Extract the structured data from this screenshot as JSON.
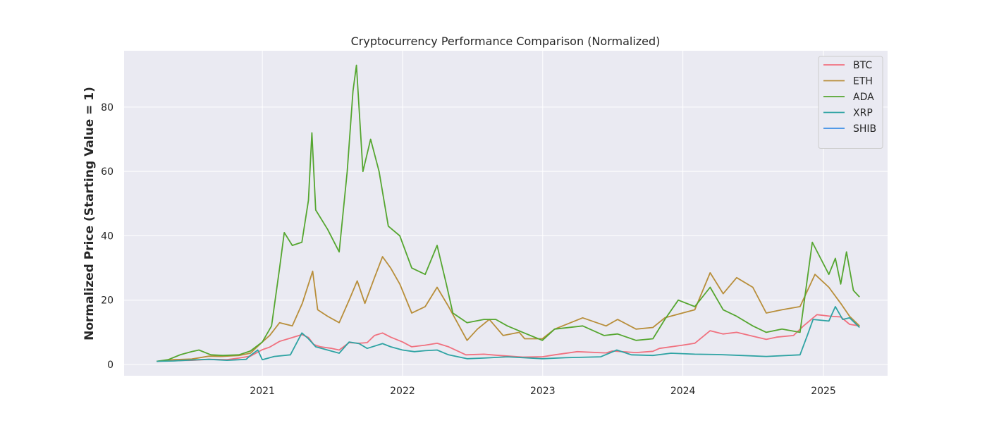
{
  "chart_data": {
    "type": "line",
    "title": "Cryptocurrency Performance Comparison (Normalized)",
    "xlabel": "",
    "ylabel": "Normalized Price (Starting Value = 1)",
    "x_ticks": [
      "2021",
      "2022",
      "2023",
      "2024",
      "2025"
    ],
    "y_ticks": [
      0,
      20,
      40,
      60,
      80
    ],
    "xlim": [
      "2020-01-07",
      "2025-06-17"
    ],
    "ylim": [
      -3.5,
      97.5
    ],
    "grid": true,
    "legend_position": "top-right",
    "series": [
      {
        "name": "BTC",
        "color": "#f0717f",
        "points": [
          [
            "2020-04-01",
            1
          ],
          [
            "2020-05-15",
            1.2
          ],
          [
            "2020-07-01",
            1.3
          ],
          [
            "2020-08-15",
            1.6
          ],
          [
            "2020-10-01",
            1.5
          ],
          [
            "2020-11-01",
            2
          ],
          [
            "2020-12-01",
            2.6
          ],
          [
            "2021-01-01",
            4.6
          ],
          [
            "2021-01-20",
            5.4
          ],
          [
            "2021-02-15",
            7.2
          ],
          [
            "2021-03-15",
            8.2
          ],
          [
            "2021-04-14",
            9.3
          ],
          [
            "2021-05-01",
            8.4
          ],
          [
            "2021-05-15",
            6.2
          ],
          [
            "2021-06-01",
            5.5
          ],
          [
            "2021-07-01",
            5.0
          ],
          [
            "2021-07-20",
            4.5
          ],
          [
            "2021-08-15",
            6.8
          ],
          [
            "2021-09-10",
            6.6
          ],
          [
            "2021-10-01",
            6.8
          ],
          [
            "2021-10-20",
            9.0
          ],
          [
            "2021-11-10",
            9.8
          ],
          [
            "2021-12-01",
            8.5
          ],
          [
            "2022-01-01",
            7.0
          ],
          [
            "2022-01-25",
            5.5
          ],
          [
            "2022-03-01",
            6.0
          ],
          [
            "2022-04-01",
            6.6
          ],
          [
            "2022-05-01",
            5.5
          ],
          [
            "2022-06-15",
            3.0
          ],
          [
            "2022-08-01",
            3.2
          ],
          [
            "2022-09-01",
            2.9
          ],
          [
            "2022-11-10",
            2.3
          ],
          [
            "2022-12-31",
            2.4
          ],
          [
            "2023-02-01",
            3.0
          ],
          [
            "2023-04-01",
            4.0
          ],
          [
            "2023-06-15",
            3.6
          ],
          [
            "2023-07-01",
            4.2
          ],
          [
            "2023-09-01",
            3.7
          ],
          [
            "2023-10-15",
            4.1
          ],
          [
            "2023-11-01",
            5.0
          ],
          [
            "2023-12-31",
            6.0
          ],
          [
            "2024-02-01",
            6.6
          ],
          [
            "2024-03-12",
            10.5
          ],
          [
            "2024-04-15",
            9.5
          ],
          [
            "2024-05-20",
            10.0
          ],
          [
            "2024-07-01",
            8.8
          ],
          [
            "2024-08-05",
            7.8
          ],
          [
            "2024-09-01",
            8.5
          ],
          [
            "2024-10-15",
            9.0
          ],
          [
            "2024-11-10",
            12.0
          ],
          [
            "2024-12-15",
            15.5
          ],
          [
            "2025-01-20",
            15.0
          ],
          [
            "2025-02-15",
            14.8
          ],
          [
            "2025-03-10",
            12.5
          ],
          [
            "2025-04-05",
            12.0
          ]
        ]
      },
      {
        "name": "ETH",
        "color": "#b88e3a",
        "points": [
          [
            "2020-04-01",
            1
          ],
          [
            "2020-05-15",
            1.5
          ],
          [
            "2020-07-01",
            1.7
          ],
          [
            "2020-08-15",
            2.6
          ],
          [
            "2020-09-15",
            2.5
          ],
          [
            "2020-11-01",
            2.8
          ],
          [
            "2020-12-01",
            3.5
          ],
          [
            "2021-01-01",
            7.0
          ],
          [
            "2021-01-20",
            9.0
          ],
          [
            "2021-02-15",
            13.0
          ],
          [
            "2021-03-20",
            12.0
          ],
          [
            "2021-04-15",
            19.0
          ],
          [
            "2021-05-12",
            29.0
          ],
          [
            "2021-05-25",
            17.0
          ],
          [
            "2021-06-20",
            15.0
          ],
          [
            "2021-07-20",
            13.0
          ],
          [
            "2021-08-15",
            20.0
          ],
          [
            "2021-09-05",
            26.0
          ],
          [
            "2021-09-25",
            19.0
          ],
          [
            "2021-10-20",
            27.0
          ],
          [
            "2021-11-10",
            33.5
          ],
          [
            "2021-12-01",
            30.0
          ],
          [
            "2021-12-25",
            25.0
          ],
          [
            "2022-01-25",
            16.0
          ],
          [
            "2022-03-01",
            18.0
          ],
          [
            "2022-04-01",
            24.0
          ],
          [
            "2022-05-01",
            18.0
          ],
          [
            "2022-06-18",
            7.5
          ],
          [
            "2022-07-15",
            11.0
          ],
          [
            "2022-08-15",
            14.0
          ],
          [
            "2022-09-20",
            9.0
          ],
          [
            "2022-11-01",
            10.0
          ],
          [
            "2022-11-15",
            8.0
          ],
          [
            "2022-12-31",
            8.0
          ],
          [
            "2023-02-01",
            11.0
          ],
          [
            "2023-04-15",
            14.5
          ],
          [
            "2023-06-15",
            12.0
          ],
          [
            "2023-07-15",
            14.0
          ],
          [
            "2023-09-01",
            11.0
          ],
          [
            "2023-10-15",
            11.5
          ],
          [
            "2023-11-15",
            14.5
          ],
          [
            "2023-12-31",
            16.0
          ],
          [
            "2024-02-01",
            17.0
          ],
          [
            "2024-03-12",
            28.5
          ],
          [
            "2024-04-15",
            22.0
          ],
          [
            "2024-05-20",
            27.0
          ],
          [
            "2024-07-01",
            24.0
          ],
          [
            "2024-08-05",
            16.0
          ],
          [
            "2024-09-15",
            17.0
          ],
          [
            "2024-11-01",
            18.0
          ],
          [
            "2024-12-10",
            28.0
          ],
          [
            "2025-01-15",
            24.0
          ],
          [
            "2025-02-15",
            19.0
          ],
          [
            "2025-03-10",
            15.0
          ],
          [
            "2025-04-05",
            12.0
          ]
        ]
      },
      {
        "name": "ADA",
        "color": "#55a630",
        "points": [
          [
            "2020-04-01",
            1
          ],
          [
            "2020-05-01",
            1.5
          ],
          [
            "2020-06-01",
            3.0
          ],
          [
            "2020-07-01",
            4.0
          ],
          [
            "2020-07-20",
            4.5
          ],
          [
            "2020-08-20",
            3.0
          ],
          [
            "2020-09-20",
            2.8
          ],
          [
            "2020-11-01",
            3.0
          ],
          [
            "2020-12-01",
            4.2
          ],
          [
            "2021-01-01",
            7.0
          ],
          [
            "2021-01-25",
            12.0
          ],
          [
            "2021-02-15",
            30.0
          ],
          [
            "2021-02-27",
            41.0
          ],
          [
            "2021-03-20",
            37.0
          ],
          [
            "2021-04-14",
            38.0
          ],
          [
            "2021-05-01",
            51.0
          ],
          [
            "2021-05-10",
            72.0
          ],
          [
            "2021-05-20",
            48.0
          ],
          [
            "2021-06-20",
            42.0
          ],
          [
            "2021-07-20",
            35.0
          ],
          [
            "2021-08-10",
            60.0
          ],
          [
            "2021-08-25",
            85.0
          ],
          [
            "2021-09-03",
            93.0
          ],
          [
            "2021-09-20",
            60.0
          ],
          [
            "2021-10-10",
            70.0
          ],
          [
            "2021-11-01",
            60.0
          ],
          [
            "2021-11-25",
            43.0
          ],
          [
            "2021-12-25",
            40.0
          ],
          [
            "2022-01-25",
            30.0
          ],
          [
            "2022-03-01",
            28.0
          ],
          [
            "2022-04-01",
            37.0
          ],
          [
            "2022-04-25",
            25.0
          ],
          [
            "2022-05-12",
            16.0
          ],
          [
            "2022-06-18",
            13.0
          ],
          [
            "2022-08-01",
            14.0
          ],
          [
            "2022-09-01",
            14.0
          ],
          [
            "2022-10-01",
            12.0
          ],
          [
            "2022-11-10",
            10.0
          ],
          [
            "2022-12-31",
            7.5
          ],
          [
            "2023-02-01",
            11.0
          ],
          [
            "2023-04-15",
            12.0
          ],
          [
            "2023-06-10",
            9.0
          ],
          [
            "2023-07-15",
            9.5
          ],
          [
            "2023-09-01",
            7.5
          ],
          [
            "2023-10-15",
            8.0
          ],
          [
            "2023-11-15",
            14.0
          ],
          [
            "2023-12-20",
            20.0
          ],
          [
            "2024-02-01",
            18.0
          ],
          [
            "2024-03-12",
            24.0
          ],
          [
            "2024-04-15",
            17.0
          ],
          [
            "2024-05-20",
            15.0
          ],
          [
            "2024-07-01",
            12.0
          ],
          [
            "2024-08-05",
            10.0
          ],
          [
            "2024-09-15",
            11.0
          ],
          [
            "2024-11-01",
            10.0
          ],
          [
            "2024-12-03",
            38.0
          ],
          [
            "2025-01-15",
            28.0
          ],
          [
            "2025-02-01",
            33.0
          ],
          [
            "2025-02-15",
            25.0
          ],
          [
            "2025-03-02",
            35.0
          ],
          [
            "2025-03-20",
            23.0
          ],
          [
            "2025-04-05",
            21.0
          ]
        ]
      },
      {
        "name": "XRP",
        "color": "#2ea3a3",
        "points": [
          [
            "2020-04-01",
            1
          ],
          [
            "2020-05-15",
            1.1
          ],
          [
            "2020-07-01",
            1.4
          ],
          [
            "2020-08-15",
            1.6
          ],
          [
            "2020-10-01",
            1.3
          ],
          [
            "2020-11-20",
            1.6
          ],
          [
            "2020-12-01",
            2.8
          ],
          [
            "2020-12-20",
            4.5
          ],
          [
            "2021-01-01",
            1.5
          ],
          [
            "2021-02-01",
            2.5
          ],
          [
            "2021-03-15",
            3.0
          ],
          [
            "2021-04-14",
            9.8
          ],
          [
            "2021-05-01",
            8.0
          ],
          [
            "2021-05-20",
            5.5
          ],
          [
            "2021-06-20",
            4.5
          ],
          [
            "2021-07-20",
            3.5
          ],
          [
            "2021-08-15",
            7.0
          ],
          [
            "2021-09-10",
            6.5
          ],
          [
            "2021-10-01",
            5.0
          ],
          [
            "2021-11-10",
            6.5
          ],
          [
            "2021-12-01",
            5.5
          ],
          [
            "2022-01-01",
            4.5
          ],
          [
            "2022-02-01",
            4.0
          ],
          [
            "2022-03-01",
            4.3
          ],
          [
            "2022-04-01",
            4.5
          ],
          [
            "2022-05-01",
            3.0
          ],
          [
            "2022-06-18",
            1.8
          ],
          [
            "2022-08-01",
            2.0
          ],
          [
            "2022-10-01",
            2.4
          ],
          [
            "2022-12-31",
            1.8
          ],
          [
            "2023-03-01",
            2.1
          ],
          [
            "2023-06-01",
            2.4
          ],
          [
            "2023-07-13",
            4.5
          ],
          [
            "2023-08-20",
            3.0
          ],
          [
            "2023-10-15",
            2.8
          ],
          [
            "2023-12-01",
            3.5
          ],
          [
            "2024-02-01",
            3.2
          ],
          [
            "2024-04-01",
            3.1
          ],
          [
            "2024-06-01",
            2.8
          ],
          [
            "2024-08-05",
            2.5
          ],
          [
            "2024-11-01",
            3.0
          ],
          [
            "2024-11-20",
            9.0
          ],
          [
            "2024-12-05",
            14.0
          ],
          [
            "2025-01-15",
            13.5
          ],
          [
            "2025-02-01",
            18.0
          ],
          [
            "2025-02-20",
            14.0
          ],
          [
            "2025-03-10",
            14.5
          ],
          [
            "2025-04-05",
            11.5
          ]
        ]
      },
      {
        "name": "SHIB",
        "color": "#3d8fe6",
        "points": []
      }
    ]
  }
}
